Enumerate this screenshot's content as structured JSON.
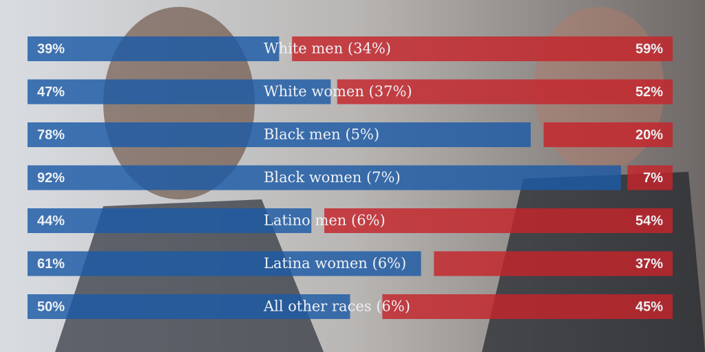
{
  "chart_data": {
    "type": "diverging-bar",
    "categories": [
      "White men (34%)",
      "White women (37%)",
      "Black men (5%)",
      "Black women (7%)",
      "Latino men (6%)",
      "Latina women (6%)",
      "All other races (6%)"
    ],
    "series": [
      {
        "color": "#1c5aa6",
        "side": "left",
        "values": [
          39,
          47,
          78,
          92,
          44,
          61,
          50
        ],
        "value_labels": [
          "39%",
          "47%",
          "78%",
          "92%",
          "44%",
          "61%",
          "50%"
        ]
      },
      {
        "color": "#c4252b",
        "side": "right",
        "values": [
          59,
          52,
          20,
          7,
          54,
          37,
          45
        ],
        "value_labels": [
          "59%",
          "52%",
          "20%",
          "7%",
          "54%",
          "37%",
          "45%"
        ]
      }
    ],
    "xlim": [
      0,
      100
    ]
  }
}
